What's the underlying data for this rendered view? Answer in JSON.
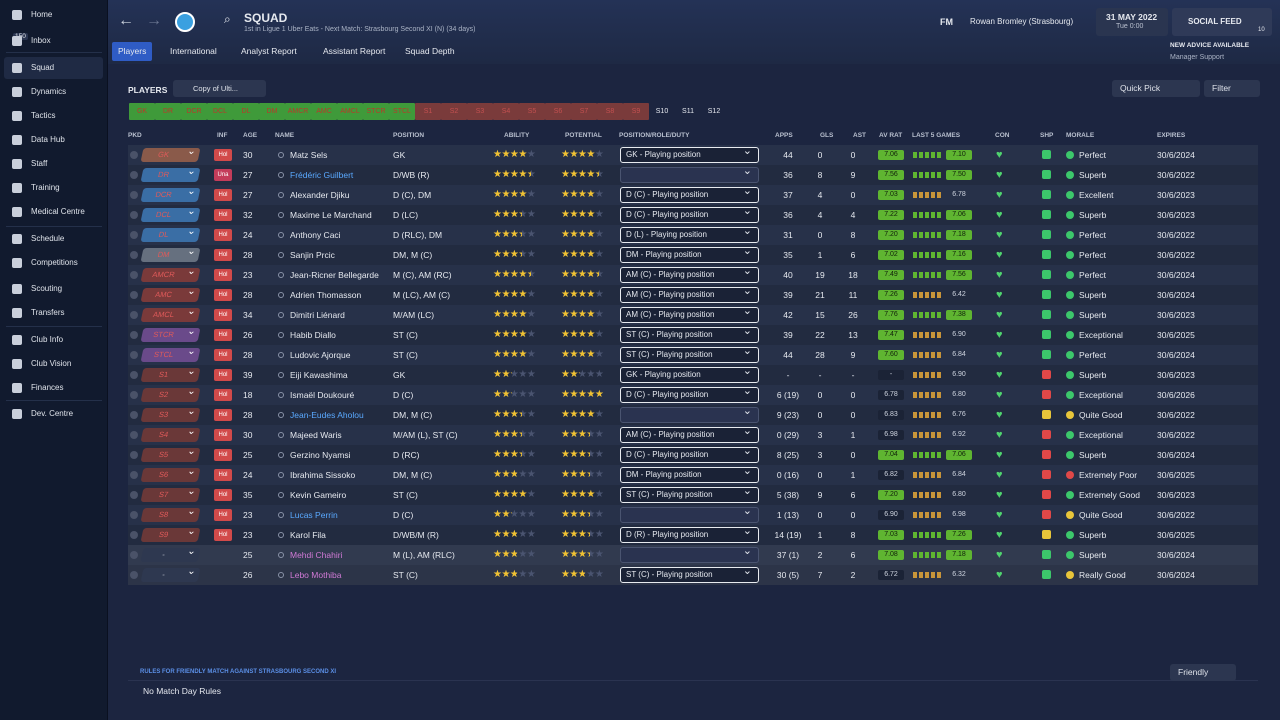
{
  "sidebar": {
    "items": [
      "Home",
      "Inbox",
      "Squad",
      "Dynamics",
      "Tactics",
      "Data Hub",
      "Staff",
      "Training",
      "Medical Centre",
      "Schedule",
      "Competitions",
      "Scouting",
      "Transfers",
      "Club Info",
      "Club Vision",
      "Finances",
      "Dev. Centre"
    ],
    "inbox_badge": "150",
    "active": "Squad"
  },
  "header": {
    "title": "SQUAD",
    "subtitle": "1st in Ligue 1 Uber Eats - Next Match: Strasbourg Second XI (N) (34 days)",
    "brand": "FM",
    "manager": "Rowan Bromley (Strasbourg)",
    "date": "31 MAY 2022",
    "time": "Tue 0:00",
    "social": "SOCIAL FEED",
    "social_badge": "10",
    "advice": "NEW ADVICE AVAILABLE",
    "advice_sub": "Manager Support"
  },
  "tabs": [
    "Players",
    "International",
    "Analyst Report",
    "Assistant Report",
    "Squad Depth"
  ],
  "toolbar": {
    "label": "PLAYERS",
    "view": "Copy of Ulti...",
    "quick_pick": "Quick Pick",
    "filter": "Filter"
  },
  "positions": [
    "GK",
    "DR",
    "DCR",
    "DCL",
    "DL",
    "DM",
    "AMCR",
    "AMC",
    "AMCL",
    "STCR",
    "STCL",
    "S1",
    "S2",
    "S3",
    "S4",
    "S5",
    "S6",
    "S7",
    "S8",
    "S9",
    "S10",
    "S11",
    "S12"
  ],
  "table": {
    "columns": [
      "PKD",
      "INF",
      "AGE",
      "NAME",
      "POSITION",
      "ABILITY",
      "POTENTIAL",
      "POSITION/ROLE/DUTY",
      "APPS",
      "GLS",
      "AST",
      "AV RAT",
      "LAST 5 GAMES",
      "CON",
      "SHP",
      "MORALE",
      "EXPIRES"
    ],
    "rows": [
      {
        "pkd": "GK",
        "pkd_color": "#8a5a4a",
        "inf": "Hol",
        "age": 30,
        "name": "Matz Sels",
        "name_color": "#e6e9ef",
        "position": "GK",
        "ability": 3.5,
        "potential": 3.5,
        "role": "GK - Playing position",
        "apps": "44",
        "gls": "0",
        "ast": "0",
        "av_rat": "7.06",
        "last5": "7.10",
        "shp_color": "#3cc76b",
        "morale": "Perfect",
        "morale_color": "#3cc76b",
        "expires": "30/6/2024"
      },
      {
        "pkd": "DR",
        "pkd_color": "#3a6ea5",
        "inf": "Una",
        "age": 27,
        "name": "Frédéric Guilbert",
        "name_color": "#5aa9ff",
        "position": "D/WB (R)",
        "ability": 4,
        "potential": 4,
        "role": "",
        "apps": "36",
        "gls": "8",
        "ast": "9",
        "av_rat": "7.56",
        "last5": "7.50",
        "shp_color": "#3cc76b",
        "morale": "Superb",
        "morale_color": "#3cc76b",
        "expires": "30/6/2022"
      },
      {
        "pkd": "DCR",
        "pkd_color": "#3a6ea5",
        "inf": "Hol",
        "age": 27,
        "name": "Alexander Djiku",
        "name_color": "#e6e9ef",
        "position": "D (C), DM",
        "ability": 3.5,
        "potential": 3.5,
        "role": "D (C) - Playing position",
        "apps": "37",
        "gls": "4",
        "ast": "0",
        "av_rat": "7.03",
        "last5": "6.78",
        "shp_color": "#3cc76b",
        "morale": "Excellent",
        "morale_color": "#3cc76b",
        "expires": "30/6/2023"
      },
      {
        "pkd": "DCL",
        "pkd_color": "#3a6ea5",
        "inf": "Hol",
        "age": 32,
        "name": "Maxime Le Marchand",
        "name_color": "#e6e9ef",
        "position": "D (LC)",
        "ability": 3,
        "potential": 3.5,
        "role": "D (C) - Playing position",
        "apps": "36",
        "gls": "4",
        "ast": "4",
        "av_rat": "7.22",
        "last5": "7.06",
        "shp_color": "#3cc76b",
        "morale": "Superb",
        "morale_color": "#3cc76b",
        "expires": "30/6/2023"
      },
      {
        "pkd": "DL",
        "pkd_color": "#3a6ea5",
        "inf": "Hol",
        "age": 24,
        "name": "Anthony Caci",
        "name_color": "#e6e9ef",
        "position": "D (RLC), DM",
        "ability": 3,
        "potential": 3.5,
        "role": "D (L) - Playing position",
        "apps": "31",
        "gls": "0",
        "ast": "8",
        "av_rat": "7.20",
        "last5": "7.18",
        "shp_color": "#3cc76b",
        "morale": "Perfect",
        "morale_color": "#3cc76b",
        "expires": "30/6/2022"
      },
      {
        "pkd": "DM",
        "pkd_color": "#66707f",
        "inf": "Hol",
        "age": 28,
        "name": "Sanjin Prcic",
        "name_color": "#e6e9ef",
        "position": "DM, M (C)",
        "ability": 3,
        "potential": 3.5,
        "role": "DM - Playing position",
        "apps": "35",
        "gls": "1",
        "ast": "6",
        "av_rat": "7.02",
        "last5": "7.16",
        "shp_color": "#3cc76b",
        "morale": "Perfect",
        "morale_color": "#3cc76b",
        "expires": "30/6/2022"
      },
      {
        "pkd": "AMCR",
        "pkd_color": "#7a3a3a",
        "inf": "Hol",
        "age": 23,
        "name": "Jean-Ricner Bellegarde",
        "name_color": "#e6e9ef",
        "position": "M (C), AM (RC)",
        "ability": 4,
        "potential": 4,
        "role": "AM (C) - Playing position",
        "apps": "40",
        "gls": "19",
        "ast": "18",
        "av_rat": "7.49",
        "last5": "7.56",
        "shp_color": "#3cc76b",
        "morale": "Perfect",
        "morale_color": "#3cc76b",
        "expires": "30/6/2024"
      },
      {
        "pkd": "AMC",
        "pkd_color": "#7a3a3a",
        "inf": "Hol",
        "age": 28,
        "name": "Adrien Thomasson",
        "name_color": "#e6e9ef",
        "position": "M (LC), AM (C)",
        "ability": 3.5,
        "potential": 3.5,
        "role": "AM (C) - Playing position",
        "apps": "39",
        "gls": "21",
        "ast": "11",
        "av_rat": "7.26",
        "last5": "6.42",
        "shp_color": "#3cc76b",
        "morale": "Superb",
        "morale_color": "#3cc76b",
        "expires": "30/6/2024"
      },
      {
        "pkd": "AMCL",
        "pkd_color": "#7a3a3a",
        "inf": "Hol",
        "age": 34,
        "name": "Dimitri Liénard",
        "name_color": "#e6e9ef",
        "position": "M/AM (LC)",
        "ability": 3.5,
        "potential": 3.5,
        "role": "AM (C) - Playing position",
        "apps": "42",
        "gls": "15",
        "ast": "26",
        "av_rat": "7.76",
        "last5": "7.38",
        "shp_color": "#3cc76b",
        "morale": "Superb",
        "morale_color": "#3cc76b",
        "expires": "30/6/2023"
      },
      {
        "pkd": "STCR",
        "pkd_color": "#6a4a8a",
        "inf": "Hol",
        "age": 26,
        "name": "Habib Diallo",
        "name_color": "#e6e9ef",
        "position": "ST (C)",
        "ability": 3.5,
        "potential": 3.5,
        "role": "ST (C) - Playing position",
        "apps": "39",
        "gls": "22",
        "ast": "13",
        "av_rat": "7.47",
        "last5": "6.90",
        "shp_color": "#3cc76b",
        "morale": "Exceptional",
        "morale_color": "#3cc76b",
        "expires": "30/6/2025"
      },
      {
        "pkd": "STCL",
        "pkd_color": "#6a4a8a",
        "inf": "Hol",
        "age": 28,
        "name": "Ludovic Ajorque",
        "name_color": "#e6e9ef",
        "position": "ST (C)",
        "ability": 3.5,
        "potential": 3.5,
        "role": "ST (C) - Playing position",
        "apps": "44",
        "gls": "28",
        "ast": "9",
        "av_rat": "7.60",
        "last5": "6.84",
        "shp_color": "#3cc76b",
        "morale": "Perfect",
        "morale_color": "#3cc76b",
        "expires": "30/6/2024"
      },
      {
        "pkd": "S1",
        "pkd_color": "#6a3838",
        "inf": "Hol",
        "age": 39,
        "name": "Eiji Kawashima",
        "name_color": "#e6e9ef",
        "position": "GK",
        "ability": 2,
        "potential": 2,
        "role": "GK - Playing position",
        "apps": "-",
        "gls": "-",
        "ast": "-",
        "av_rat": "-",
        "last5": "6.90",
        "shp_color": "#e04848",
        "morale": "Superb",
        "morale_color": "#3cc76b",
        "expires": "30/6/2023"
      },
      {
        "pkd": "S2",
        "pkd_color": "#6a3838",
        "inf": "Hol",
        "age": 18,
        "name": "Ismaël Doukouré",
        "name_color": "#e6e9ef",
        "position": "D (C)",
        "ability": 2,
        "potential": 4.5,
        "role": "D (C) - Playing position",
        "apps": "6 (19)",
        "gls": "0",
        "ast": "0",
        "av_rat": "6.78",
        "last5": "6.80",
        "shp_color": "#e04848",
        "morale": "Exceptional",
        "morale_color": "#3cc76b",
        "expires": "30/6/2026"
      },
      {
        "pkd": "S3",
        "pkd_color": "#6a3838",
        "inf": "Hol",
        "age": 28,
        "name": "Jean-Eudes Aholou",
        "name_color": "#5aa9ff",
        "position": "DM, M (C)",
        "ability": 3,
        "potential": 3.5,
        "role": "",
        "apps": "9 (23)",
        "gls": "0",
        "ast": "0",
        "av_rat": "6.83",
        "last5": "6.76",
        "shp_color": "#e8c53a",
        "morale": "Quite Good",
        "morale_color": "#e8c53a",
        "expires": "30/6/2022"
      },
      {
        "pkd": "S4",
        "pkd_color": "#6a3838",
        "inf": "Hol",
        "age": 30,
        "name": "Majeed Waris",
        "name_color": "#e6e9ef",
        "position": "M/AM (L), ST (C)",
        "ability": 3,
        "potential": 3,
        "role": "AM (C) - Playing position",
        "apps": "0 (29)",
        "gls": "3",
        "ast": "1",
        "av_rat": "6.98",
        "last5": "6.92",
        "shp_color": "#e04848",
        "morale": "Exceptional",
        "morale_color": "#3cc76b",
        "expires": "30/6/2022"
      },
      {
        "pkd": "S5",
        "pkd_color": "#6a3838",
        "inf": "Hol",
        "age": 25,
        "name": "Gerzino Nyamsi",
        "name_color": "#e6e9ef",
        "position": "D (RC)",
        "ability": 3,
        "potential": 3,
        "role": "D (C) - Playing position",
        "apps": "8 (25)",
        "gls": "3",
        "ast": "0",
        "av_rat": "7.04",
        "last5": "7.06",
        "shp_color": "#e04848",
        "morale": "Superb",
        "morale_color": "#3cc76b",
        "expires": "30/6/2024"
      },
      {
        "pkd": "S6",
        "pkd_color": "#6a3838",
        "inf": "Hol",
        "age": 24,
        "name": "Ibrahima Sissoko",
        "name_color": "#e6e9ef",
        "position": "DM, M (C)",
        "ability": 2.5,
        "potential": 3,
        "role": "DM - Playing position",
        "apps": "0 (16)",
        "gls": "0",
        "ast": "1",
        "av_rat": "6.82",
        "last5": "6.84",
        "shp_color": "#e04848",
        "morale": "Extremely Poor",
        "morale_color": "#e04848",
        "expires": "30/6/2025"
      },
      {
        "pkd": "S7",
        "pkd_color": "#6a3838",
        "inf": "Hol",
        "age": 35,
        "name": "Kevin Gameiro",
        "name_color": "#e6e9ef",
        "position": "ST (C)",
        "ability": 3.5,
        "potential": 3.5,
        "role": "ST (C) - Playing position",
        "apps": "5 (38)",
        "gls": "9",
        "ast": "6",
        "av_rat": "7.20",
        "last5": "6.80",
        "shp_color": "#e04848",
        "morale": "Extremely Good",
        "morale_color": "#3cc76b",
        "expires": "30/6/2023"
      },
      {
        "pkd": "S8",
        "pkd_color": "#6a3838",
        "inf": "Hol",
        "age": 23,
        "name": "Lucas Perrin",
        "name_color": "#5aa9ff",
        "position": "D (C)",
        "ability": 2,
        "potential": 3,
        "role": "",
        "apps": "1 (13)",
        "gls": "0",
        "ast": "0",
        "av_rat": "6.90",
        "last5": "6.98",
        "shp_color": "#e04848",
        "morale": "Quite Good",
        "morale_color": "#e8c53a",
        "expires": "30/6/2022"
      },
      {
        "pkd": "S9",
        "pkd_color": "#6a3838",
        "inf": "Hol",
        "age": 23,
        "name": "Karol Fila",
        "name_color": "#e6e9ef",
        "position": "D/WB/M (R)",
        "ability": 2.5,
        "potential": 3,
        "role": "D (R) - Playing position",
        "apps": "14 (19)",
        "gls": "1",
        "ast": "8",
        "av_rat": "7.03",
        "last5": "7.26",
        "shp_color": "#e8c53a",
        "morale": "Superb",
        "morale_color": "#3cc76b",
        "expires": "30/6/2025"
      },
      {
        "pkd": "-",
        "pkd_color": "#2e3850",
        "inf": "",
        "age": 25,
        "name": "Mehdi Chahiri",
        "name_color": "#d17ad6",
        "position": "M (L), AM (RLC)",
        "ability": 2.5,
        "potential": 3,
        "role": "",
        "apps": "37 (1)",
        "gls": "2",
        "ast": "6",
        "av_rat": "7.08",
        "last5": "7.18",
        "shp_color": "#3cc76b",
        "morale": "Superb",
        "morale_color": "#3cc76b",
        "expires": "30/6/2024"
      },
      {
        "pkd": "-",
        "pkd_color": "#2e3850",
        "inf": "",
        "age": 26,
        "name": "Lebo Mothiba",
        "name_color": "#d17ad6",
        "position": "ST (C)",
        "ability": 2.5,
        "potential": 2.5,
        "role": "ST (C) - Playing position",
        "apps": "30 (5)",
        "gls": "7",
        "ast": "2",
        "av_rat": "6.72",
        "last5": "6.32",
        "shp_color": "#3cc76b",
        "morale": "Really Good",
        "morale_color": "#e8c53a",
        "expires": "30/6/2024"
      }
    ]
  },
  "footer": {
    "rules": "RULES FOR FRIENDLY MATCH AGAINST STRASBOURG SECOND XI",
    "no_rules": "No Match Day Rules",
    "match_type": "Friendly"
  }
}
